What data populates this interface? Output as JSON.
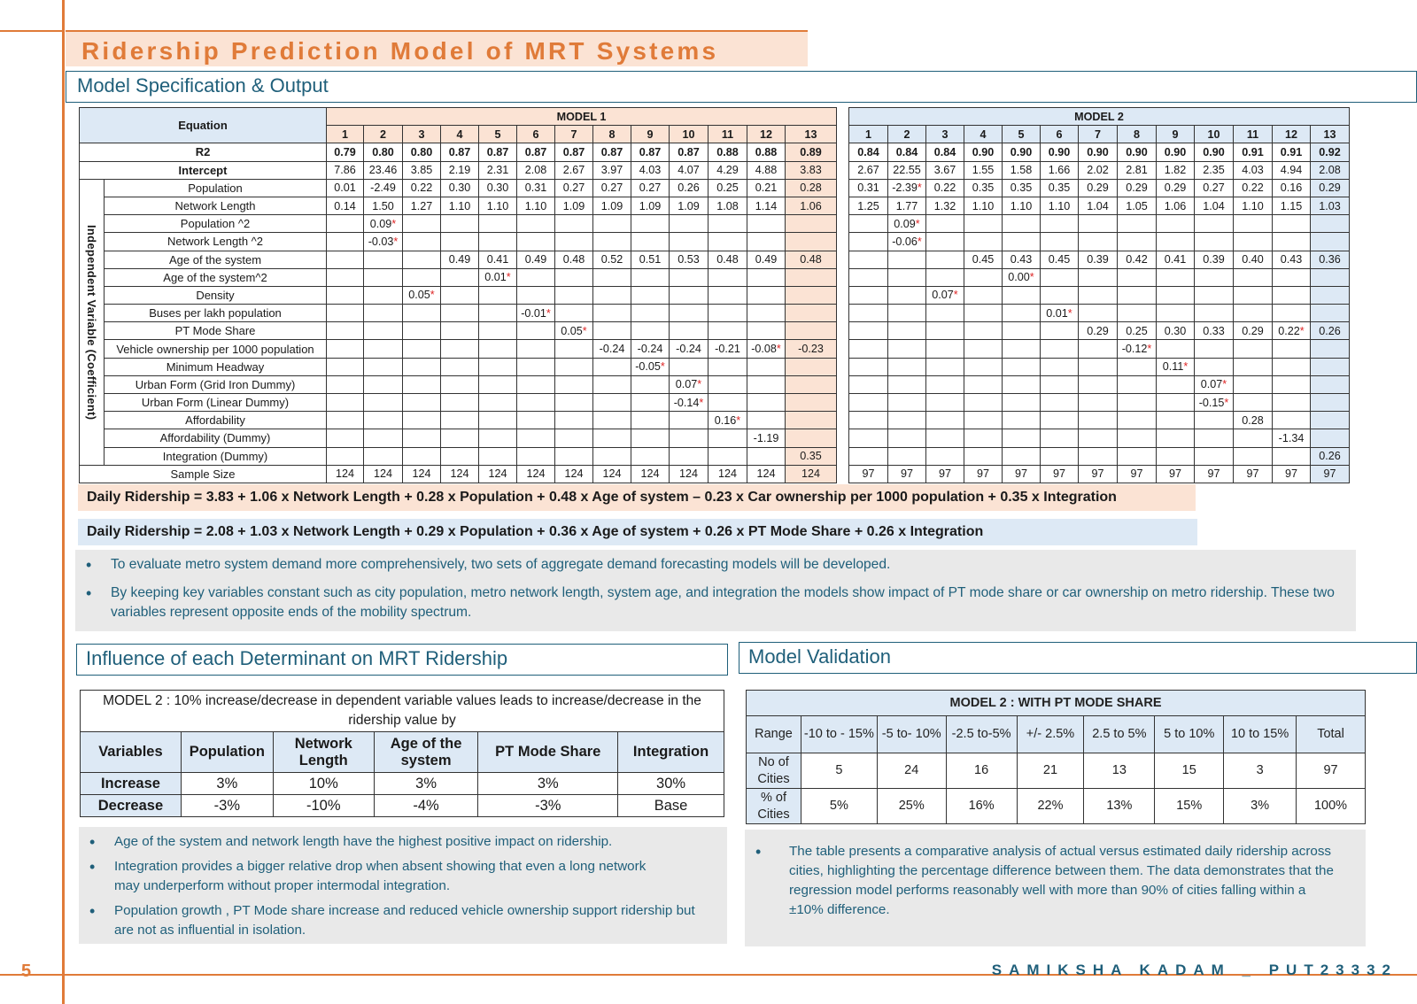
{
  "title": "Ridership Prediction Model of MRT Systems",
  "section1": "Model Specification & Output",
  "model_table": {
    "equation_label": "Equation",
    "model1_label": "MODEL 1",
    "model2_label": "MODEL 2",
    "cols": [
      "1",
      "2",
      "3",
      "4",
      "5",
      "6",
      "7",
      "8",
      "9",
      "10",
      "11",
      "12",
      "13"
    ],
    "group_label": "Independent Variable (Coefficient)",
    "r2_label": "R2",
    "intercept_label": "Intercept",
    "sample_label": "Sample Size",
    "m1_r2": [
      "0.79",
      "0.80",
      "0.80",
      "0.87",
      "0.87",
      "0.87",
      "0.87",
      "0.87",
      "0.87",
      "0.87",
      "0.88",
      "0.88",
      "0.89"
    ],
    "m2_r2": [
      "0.84",
      "0.84",
      "0.84",
      "0.90",
      "0.90",
      "0.90",
      "0.90",
      "0.90",
      "0.90",
      "0.90",
      "0.91",
      "0.91",
      "0.92"
    ],
    "m1_int": [
      "7.86",
      "23.46",
      "3.85",
      "2.19",
      "2.31",
      "2.08",
      "2.67",
      "3.97",
      "4.03",
      "4.07",
      "4.29",
      "4.88",
      "3.83"
    ],
    "m2_int": [
      "2.67",
      "22.55",
      "3.67",
      "1.55",
      "1.58",
      "1.66",
      "2.02",
      "2.81",
      "1.82",
      "2.35",
      "4.03",
      "4.94",
      "2.08"
    ],
    "m1_n": [
      "124",
      "124",
      "124",
      "124",
      "124",
      "124",
      "124",
      "124",
      "124",
      "124",
      "124",
      "124",
      "124"
    ],
    "m2_n": [
      "97",
      "97",
      "97",
      "97",
      "97",
      "97",
      "97",
      "97",
      "97",
      "97",
      "97",
      "97",
      "97"
    ],
    "vars": [
      {
        "name": "Population",
        "m1": [
          "0.01",
          "-2.49",
          "0.22",
          "0.30",
          "0.30",
          "0.31",
          "0.27",
          "0.27",
          "0.27",
          "0.26",
          "0.25",
          "0.21",
          "0.28"
        ],
        "m2": [
          "0.31",
          "-2.39*",
          "0.22",
          "0.35",
          "0.35",
          "0.35",
          "0.29",
          "0.29",
          "0.29",
          "0.27",
          "0.22",
          "0.16",
          "0.29"
        ]
      },
      {
        "name": "Network Length",
        "m1": [
          "0.14",
          "1.50",
          "1.27",
          "1.10",
          "1.10",
          "1.10",
          "1.09",
          "1.09",
          "1.09",
          "1.09",
          "1.08",
          "1.14",
          "1.06"
        ],
        "m2": [
          "1.25",
          "1.77",
          "1.32",
          "1.10",
          "1.10",
          "1.10",
          "1.04",
          "1.05",
          "1.06",
          "1.04",
          "1.10",
          "1.15",
          "1.03"
        ]
      },
      {
        "name": "Population ^2",
        "m1": [
          "",
          "0.09*",
          "",
          "",
          "",
          "",
          "",
          "",
          "",
          "",
          "",
          "",
          ""
        ],
        "m2": [
          "",
          "0.09*",
          "",
          "",
          "",
          "",
          "",
          "",
          "",
          "",
          "",
          "",
          ""
        ]
      },
      {
        "name": "Network Length ^2",
        "m1": [
          "",
          "-0.03*",
          "",
          "",
          "",
          "",
          "",
          "",
          "",
          "",
          "",
          "",
          ""
        ],
        "m2": [
          "",
          "-0.06*",
          "",
          "",
          "",
          "",
          "",
          "",
          "",
          "",
          "",
          "",
          ""
        ]
      },
      {
        "name": "Age of the system",
        "m1": [
          "",
          "",
          "",
          "0.49",
          "0.41",
          "0.49",
          "0.48",
          "0.52",
          "0.51",
          "0.53",
          "0.48",
          "0.49",
          "0.48"
        ],
        "m2": [
          "",
          "",
          "",
          "0.45",
          "0.43",
          "0.45",
          "0.39",
          "0.42",
          "0.41",
          "0.39",
          "0.40",
          "0.43",
          "0.36"
        ]
      },
      {
        "name": "Age of the system^2",
        "m1": [
          "",
          "",
          "",
          "",
          "0.01*",
          "",
          "",
          "",
          "",
          "",
          "",
          "",
          ""
        ],
        "m2": [
          "",
          "",
          "",
          "",
          "0.00*",
          "",
          "",
          "",
          "",
          "",
          "",
          "",
          ""
        ]
      },
      {
        "name": "Density",
        "m1": [
          "",
          "",
          "0.05*",
          "",
          "",
          "",
          "",
          "",
          "",
          "",
          "",
          "",
          ""
        ],
        "m2": [
          "",
          "",
          "0.07*",
          "",
          "",
          "",
          "",
          "",
          "",
          "",
          "",
          "",
          ""
        ]
      },
      {
        "name": "Buses per lakh population",
        "m1": [
          "",
          "",
          "",
          "",
          "",
          "-0.01*",
          "",
          "",
          "",
          "",
          "",
          "",
          ""
        ],
        "m2": [
          "",
          "",
          "",
          "",
          "",
          "0.01*",
          "",
          "",
          "",
          "",
          "",
          "",
          ""
        ]
      },
      {
        "name": "PT Mode Share",
        "m1": [
          "",
          "",
          "",
          "",
          "",
          "",
          "0.05*",
          "",
          "",
          "",
          "",
          "",
          ""
        ],
        "m2": [
          "",
          "",
          "",
          "",
          "",
          "",
          "0.29",
          "0.25",
          "0.30",
          "0.33",
          "0.29",
          "0.22*",
          "0.26"
        ]
      },
      {
        "name": "Vehicle ownership per 1000 population",
        "m1": [
          "",
          "",
          "",
          "",
          "",
          "",
          "",
          "-0.24",
          "-0.24",
          "-0.24",
          "-0.21",
          "-0.08*",
          "-0.23"
        ],
        "m2": [
          "",
          "",
          "",
          "",
          "",
          "",
          "",
          "-0.12*",
          "",
          "",
          "",
          "",
          ""
        ]
      },
      {
        "name": "Minimum Headway",
        "m1": [
          "",
          "",
          "",
          "",
          "",
          "",
          "",
          "",
          "-0.05*",
          "",
          "",
          "",
          ""
        ],
        "m2": [
          "",
          "",
          "",
          "",
          "",
          "",
          "",
          "",
          "0.11*",
          "",
          "",
          "",
          ""
        ]
      },
      {
        "name": "Urban Form (Grid Iron Dummy)",
        "m1": [
          "",
          "",
          "",
          "",
          "",
          "",
          "",
          "",
          "",
          "0.07*",
          "",
          "",
          ""
        ],
        "m2": [
          "",
          "",
          "",
          "",
          "",
          "",
          "",
          "",
          "",
          "0.07*",
          "",
          "",
          ""
        ]
      },
      {
        "name": "Urban Form (Linear Dummy)",
        "m1": [
          "",
          "",
          "",
          "",
          "",
          "",
          "",
          "",
          "",
          "-0.14*",
          "",
          "",
          ""
        ],
        "m2": [
          "",
          "",
          "",
          "",
          "",
          "",
          "",
          "",
          "",
          "-0.15*",
          "",
          "",
          ""
        ]
      },
      {
        "name": "Affordability",
        "m1": [
          "",
          "",
          "",
          "",
          "",
          "",
          "",
          "",
          "",
          "",
          "0.16*",
          "",
          ""
        ],
        "m2": [
          "",
          "",
          "",
          "",
          "",
          "",
          "",
          "",
          "",
          "",
          "0.28",
          "",
          ""
        ]
      },
      {
        "name": "Affordability (Dummy)",
        "m1": [
          "",
          "",
          "",
          "",
          "",
          "",
          "",
          "",
          "",
          "",
          "",
          "-1.19",
          ""
        ],
        "m2": [
          "",
          "",
          "",
          "",
          "",
          "",
          "",
          "",
          "",
          "",
          "",
          "-1.34",
          ""
        ]
      },
      {
        "name": "Integration (Dummy)",
        "m1": [
          "",
          "",
          "",
          "",
          "",
          "",
          "",
          "",
          "",
          "",
          "",
          "",
          "0.35"
        ],
        "m2": [
          "",
          "",
          "",
          "",
          "",
          "",
          "",
          "",
          "",
          "",
          "",
          "",
          "0.26"
        ]
      }
    ]
  },
  "eq1": "Daily Ridership = 3.83 + 1.06 x Network Length + 0.28 x Population + 0.48 x Age of system – 0.23 x Car ownership per 1000 population + 0.35 x Integration",
  "eq2": "Daily Ridership = 2.08 + 1.03 x Network Length + 0.29 x Population + 0.36 x Age of system + 0.26 x PT Mode Share + 0.26 x Integration",
  "bullets1": [
    "To evaluate metro system demand more comprehensively, two sets of aggregate demand forecasting models will be developed.",
    "By keeping key variables constant such as city population, metro network length, system age, and integration the models show impact of PT mode share or car ownership on metro ridership. These two variables represent opposite ends of the mobility spectrum."
  ],
  "section2": "Influence of each Determinant on MRT Ridership",
  "section3": "Model Validation",
  "influence": {
    "caption": "MODEL 2 : 10% increase/decrease in dependent variable values leads to increase/decrease in the ridership value by",
    "headers": [
      "Variables",
      "Population",
      "Network Length",
      "Age of the system",
      "PT Mode Share",
      "Integration"
    ],
    "rows": [
      [
        "Increase",
        "3%",
        "10%",
        "3%",
        "3%",
        "30%"
      ],
      [
        "Decrease",
        "-3%",
        "-10%",
        "-4%",
        "-3%",
        "Base"
      ]
    ]
  },
  "bullets2": [
    "Age of the system and network length have the highest positive impact on ridership.",
    "Integration provides a bigger relative drop when absent showing that even a long network may underperform without proper intermodal integration.",
    "Population growth , PT Mode share increase and reduced vehicle ownership support ridership but are not as influential in isolation."
  ],
  "validation": {
    "caption": "MODEL 2 : WITH PT MODE SHARE",
    "headers": [
      "Range",
      "-10 to - 15%",
      "-5 to- 10%",
      "-2.5 to-5%",
      "+/- 2.5%",
      "2.5 to 5%",
      "5 to 10%",
      "10 to 15%",
      "Total"
    ],
    "rows": [
      [
        "No of Cities",
        "5",
        "24",
        "16",
        "21",
        "13",
        "15",
        "3",
        "97"
      ],
      [
        "% of Cities",
        "5%",
        "25%",
        "16%",
        "22%",
        "13%",
        "15%",
        "3%",
        "100%"
      ]
    ]
  },
  "bullets3": [
    "The table presents a comparative analysis of actual versus estimated daily ridership across cities, highlighting the percentage difference between them. The data demonstrates that the regression model performs reasonably well with more than 90% of cities falling within a ±10% difference."
  ],
  "page_number": "5",
  "footer": "SAMIKSHA KADAM _ PUT23332"
}
